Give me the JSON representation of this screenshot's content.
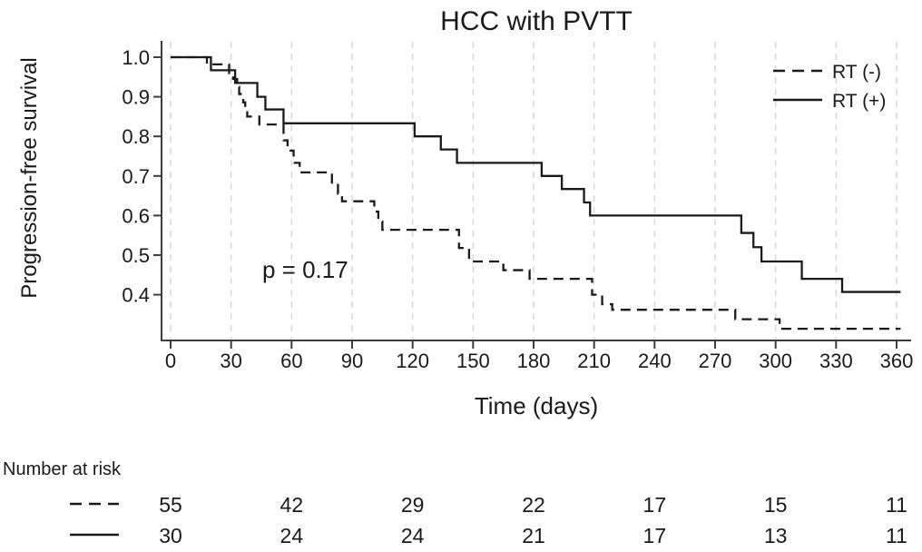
{
  "chart_data": {
    "type": "line",
    "subtype": "kaplan-meier-step",
    "title": "HCC with PVTT",
    "xlabel": "Time (days)",
    "ylabel": "Progression-free survival",
    "annotation": "p = 0.17",
    "x_ticks": [
      0,
      30,
      60,
      90,
      120,
      150,
      180,
      210,
      240,
      270,
      300,
      330,
      360
    ],
    "y_ticks": [
      0.4,
      0.5,
      0.6,
      0.7,
      0.8,
      0.9,
      1.0
    ],
    "xlim": [
      0,
      360
    ],
    "ylim": [
      0.3,
      1.0
    ],
    "grid": "vertical-dashed",
    "legend_position": "top-right",
    "series": [
      {
        "name": "RT (-)",
        "style": "dashed",
        "n": 55,
        "steps": [
          [
            0,
            1.0
          ],
          [
            18,
            0.982
          ],
          [
            29,
            0.96
          ],
          [
            31,
            0.945
          ],
          [
            33,
            0.925
          ],
          [
            34,
            0.907
          ],
          [
            36,
            0.886
          ],
          [
            37,
            0.868
          ],
          [
            38,
            0.85
          ],
          [
            44,
            0.83
          ],
          [
            56,
            0.79
          ],
          [
            58,
            0.764
          ],
          [
            61,
            0.733
          ],
          [
            64,
            0.709
          ],
          [
            80,
            0.68
          ],
          [
            83,
            0.655
          ],
          [
            85,
            0.636
          ],
          [
            101,
            0.61
          ],
          [
            103,
            0.585
          ],
          [
            105,
            0.564
          ],
          [
            143,
            0.518
          ],
          [
            148,
            0.484
          ],
          [
            165,
            0.462
          ],
          [
            178,
            0.44
          ],
          [
            209,
            0.4
          ],
          [
            214,
            0.376
          ],
          [
            219,
            0.362
          ],
          [
            280,
            0.338
          ],
          [
            302,
            0.314
          ],
          [
            362,
            0.314
          ]
        ]
      },
      {
        "name": "RT (+)",
        "style": "solid",
        "n": 30,
        "steps": [
          [
            0,
            1.0
          ],
          [
            20,
            0.967
          ],
          [
            32,
            0.935
          ],
          [
            43,
            0.9
          ],
          [
            47,
            0.868
          ],
          [
            56,
            0.833
          ],
          [
            121,
            0.8
          ],
          [
            134,
            0.767
          ],
          [
            142,
            0.733
          ],
          [
            184,
            0.7
          ],
          [
            194,
            0.667
          ],
          [
            205,
            0.633
          ],
          [
            208,
            0.6
          ],
          [
            283,
            0.556
          ],
          [
            289,
            0.52
          ],
          [
            293,
            0.484
          ],
          [
            313,
            0.44
          ],
          [
            333,
            0.407
          ],
          [
            362,
            0.407
          ]
        ]
      }
    ],
    "risk_table": {
      "label": "Number at risk",
      "times": [
        0,
        60,
        120,
        180,
        240,
        300,
        360
      ],
      "rows": [
        {
          "series": "RT (-)",
          "style": "dashed",
          "values": [
            55,
            42,
            29,
            22,
            17,
            15,
            11
          ]
        },
        {
          "series": "RT (+)",
          "style": "solid",
          "values": [
            30,
            24,
            24,
            21,
            17,
            13,
            11
          ]
        }
      ]
    }
  }
}
